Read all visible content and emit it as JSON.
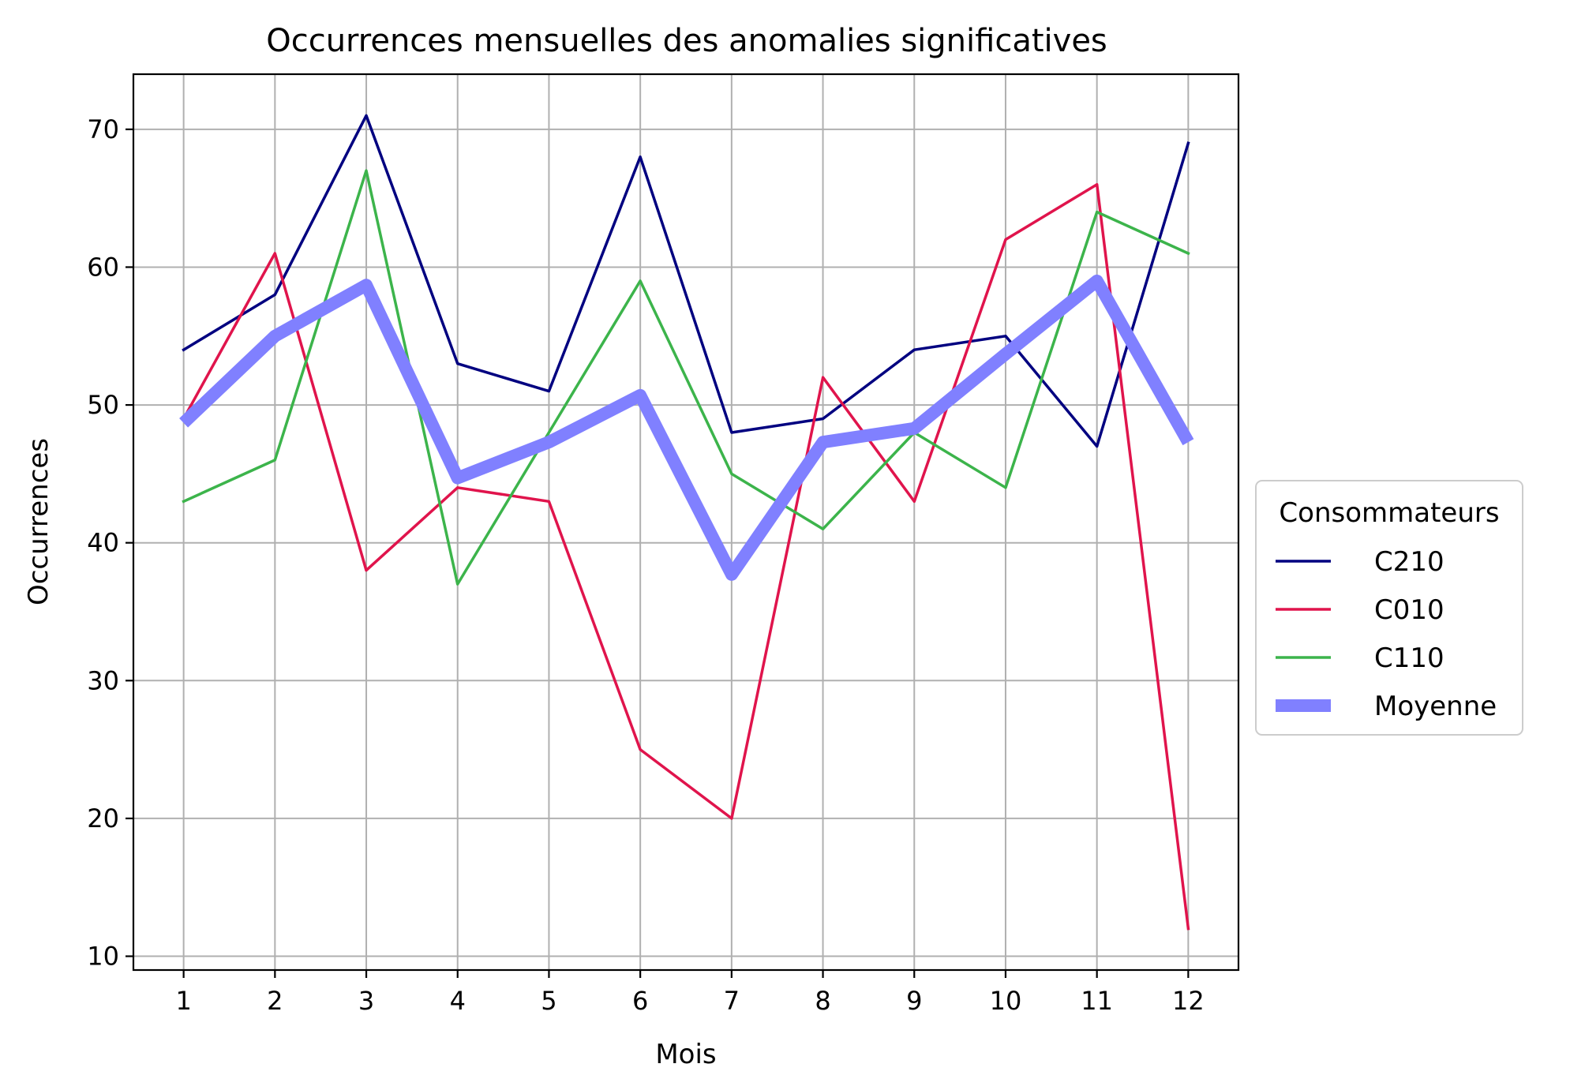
{
  "chart_data": {
    "type": "line",
    "title": "Occurrences mensuelles des anomalies significatives",
    "xlabel": "Mois",
    "ylabel": "Occurrences",
    "x": [
      1,
      2,
      3,
      4,
      5,
      6,
      7,
      8,
      9,
      10,
      11,
      12
    ],
    "xlim": [
      0.45,
      12.55
    ],
    "ylim": [
      9,
      74
    ],
    "yticks": [
      10,
      20,
      30,
      40,
      50,
      60,
      70
    ],
    "grid": true,
    "legend": {
      "title": "Consommateurs",
      "placement": "center-right outside"
    },
    "series": [
      {
        "name": "C210",
        "color": "#000080",
        "values": [
          54,
          58,
          71,
          53,
          51,
          68,
          48,
          49,
          54,
          55,
          47,
          69
        ]
      },
      {
        "name": "C010",
        "color": "#e0144c",
        "values": [
          49,
          61,
          38,
          44,
          43,
          25,
          20,
          52,
          43,
          62,
          66,
          12
        ]
      },
      {
        "name": "C110",
        "color": "#3cb44b",
        "values": [
          43,
          46,
          67,
          37,
          48,
          59,
          45,
          41,
          48,
          44,
          64,
          61
        ]
      },
      {
        "name": "Moyenne",
        "color": "#8080ff",
        "emphasis": "thick",
        "values": [
          48.7,
          55.0,
          58.7,
          44.7,
          47.3,
          50.7,
          37.7,
          47.3,
          48.3,
          53.7,
          59.0,
          47.3
        ]
      }
    ]
  }
}
